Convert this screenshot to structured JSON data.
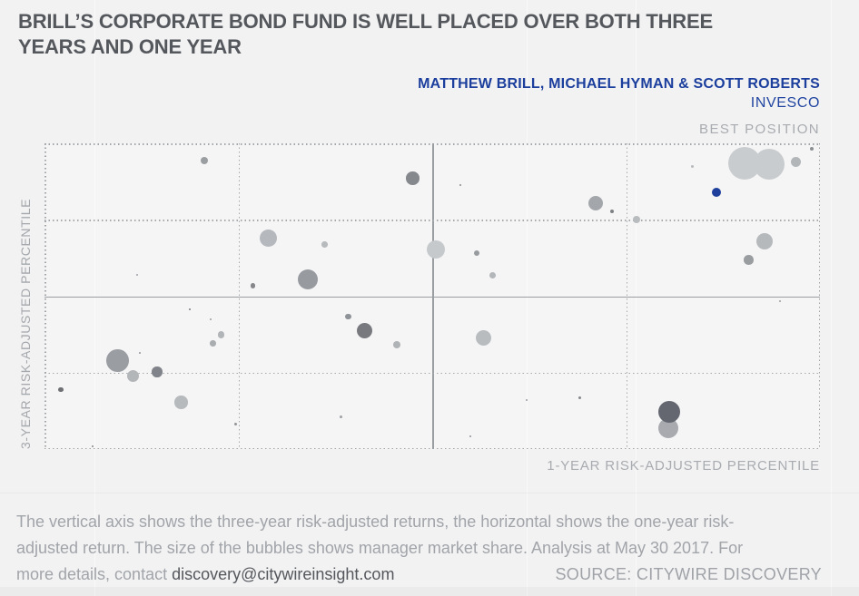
{
  "header": {
    "title_line1": "BRILL’S CORPORATE BOND FUND IS WELL PLACED OVER BOTH THREE",
    "title_line2": "YEARS AND ONE YEAR",
    "byline": "MATTHEW BRILL, MICHAEL HYMAN & SCOTT ROBERTS",
    "company": "INVESCO"
  },
  "chart": {
    "corner_label": "BEST POSITION",
    "y_axis_label": "3-YEAR RISK-ADJUSTED PERCENTILE",
    "x_axis_label": "1-YEAR RISK-ADJUSTED PERCENTILE"
  },
  "chart_data": {
    "type": "scatter",
    "title": "BRILL’S CORPORATE BOND FUND IS WELL PLACED OVER BOTH THREE YEARS AND ONE YEAR",
    "xlabel": "1-YEAR RISK-ADJUSTED PERCENTILE",
    "ylabel": "3-YEAR RISK-ADJUSTED PERCENTILE",
    "xlim": [
      0,
      100
    ],
    "ylim": [
      0,
      100
    ],
    "grid": "quartile grid, dotted at 25/75, solid at 50, dotted outer frame",
    "legend": "bubble size = manager market share; blue bubble = highlighted fund",
    "highlight_color": "#1e3f9b",
    "gridlines": {
      "dotted_x_pct": [
        25,
        75
      ],
      "solid_x_pct": [
        50
      ],
      "dotted_y_pct": [
        25,
        75
      ],
      "solid_y_pct": [
        50
      ]
    },
    "bubbles": [
      {
        "x": 90.3,
        "y": 93.5,
        "r": 18,
        "color": "#c9ccce"
      },
      {
        "x": 93.4,
        "y": 93.2,
        "r": 17,
        "color": "#c9ccce"
      },
      {
        "x": 96.9,
        "y": 93.8,
        "r": 5.5,
        "color": "#b3b6b9"
      },
      {
        "x": 99.0,
        "y": 98.1,
        "r": 2,
        "color": "#8d9093"
      },
      {
        "x": 83.5,
        "y": 92.3,
        "r": 1.5,
        "color": "#b7babd"
      },
      {
        "x": 71.1,
        "y": 80.3,
        "r": 8,
        "color": "#a3a6aa"
      },
      {
        "x": 73.2,
        "y": 77.6,
        "r": 2,
        "color": "#7e8184"
      },
      {
        "x": 76.3,
        "y": 75.2,
        "r": 4,
        "color": "#b9bcbf"
      },
      {
        "x": 20.6,
        "y": 94.5,
        "r": 4,
        "color": "#9b9ea1"
      },
      {
        "x": 28.9,
        "y": 69.0,
        "r": 9.7,
        "color": "#b5b8bc"
      },
      {
        "x": 11.9,
        "y": 56.9,
        "r": 1,
        "color": "#9ea1a4"
      },
      {
        "x": 26.9,
        "y": 53.4,
        "r": 2.7,
        "color": "#85878a"
      },
      {
        "x": 34.0,
        "y": 55.4,
        "r": 11,
        "color": "#979ba0"
      },
      {
        "x": 47.5,
        "y": 88.5,
        "r": 7.3,
        "color": "#85888c"
      },
      {
        "x": 53.6,
        "y": 86.3,
        "r": 1,
        "color": "#8a8d90"
      },
      {
        "x": 36.1,
        "y": 67.0,
        "r": 3.3,
        "color": "#b7babd"
      },
      {
        "x": 50.5,
        "y": 65.3,
        "r": 10,
        "color": "#c6c9cc"
      },
      {
        "x": 55.7,
        "y": 64.2,
        "r": 3,
        "color": "#989b9e"
      },
      {
        "x": 57.8,
        "y": 56.9,
        "r": 3.7,
        "color": "#b4b7ba"
      },
      {
        "x": 18.7,
        "y": 45.8,
        "r": 1,
        "color": "#76787b"
      },
      {
        "x": 21.4,
        "y": 42.3,
        "r": 1,
        "color": "#9b9ea1"
      },
      {
        "x": 22.8,
        "y": 37.4,
        "r": 3.7,
        "color": "#b2b5b8"
      },
      {
        "x": 21.7,
        "y": 34.6,
        "r": 3.3,
        "color": "#a9adb0"
      },
      {
        "x": 9.4,
        "y": 29.0,
        "r": 12.3,
        "color": "#9a9da2"
      },
      {
        "x": 12.3,
        "y": 31.4,
        "r": 0.8,
        "color": "#9b9ea1"
      },
      {
        "x": 11.4,
        "y": 23.9,
        "r": 6.7,
        "color": "#b3b6b9"
      },
      {
        "x": 14.5,
        "y": 25.2,
        "r": 5.7,
        "color": "#808389"
      },
      {
        "x": 2.1,
        "y": 19.4,
        "r": 2.7,
        "color": "#6e7073"
      },
      {
        "x": 17.6,
        "y": 15.3,
        "r": 7.3,
        "color": "#b7babd"
      },
      {
        "x": 24.7,
        "y": 8.2,
        "r": 1.5,
        "color": "#929598"
      },
      {
        "x": 6.2,
        "y": 1.0,
        "r": 1,
        "color": "#85878a"
      },
      {
        "x": 39.2,
        "y": 43.3,
        "r": 3.3,
        "color": "#8f9296"
      },
      {
        "x": 41.3,
        "y": 38.8,
        "r": 8.7,
        "color": "#77797e"
      },
      {
        "x": 45.4,
        "y": 34.0,
        "r": 4,
        "color": "#b0b3b6"
      },
      {
        "x": 56.6,
        "y": 36.4,
        "r": 8.7,
        "color": "#b9bcbf"
      },
      {
        "x": 38.2,
        "y": 10.6,
        "r": 1.3,
        "color": "#a3a6a9"
      },
      {
        "x": 62.2,
        "y": 16.0,
        "r": 1,
        "color": "#9b9ea1"
      },
      {
        "x": 69.0,
        "y": 16.8,
        "r": 1.7,
        "color": "#85878a"
      },
      {
        "x": 54.9,
        "y": 4.2,
        "r": 0.7,
        "color": "#9b9ea1"
      },
      {
        "x": 92.9,
        "y": 67.9,
        "r": 9,
        "color": "#b6b9bc"
      },
      {
        "x": 90.8,
        "y": 61.8,
        "r": 5.3,
        "color": "#9a9da0"
      },
      {
        "x": 94.9,
        "y": 48.5,
        "r": 1,
        "color": "#9b9ea1"
      },
      {
        "x": 80.5,
        "y": 6.7,
        "r": 11,
        "color": "#a8aaaf"
      },
      {
        "x": 80.6,
        "y": 12.2,
        "r": 12,
        "color": "#646670"
      },
      {
        "x": 86.6,
        "y": 84.0,
        "r": 5,
        "color": "#1e3f9b",
        "highlight": true
      }
    ]
  },
  "footer": {
    "line1": "The vertical axis shows the three-year risk-adjusted returns, the horizontal shows the one-year risk-",
    "line2": "adjusted return. The size of the bubbles shows manager market share. Analysis at May 30 2017. For",
    "line3_prefix": "more details, contact ",
    "email": "discovery@citywireinsight.com",
    "source": "SOURCE: CITYWIRE DISCOVERY"
  }
}
